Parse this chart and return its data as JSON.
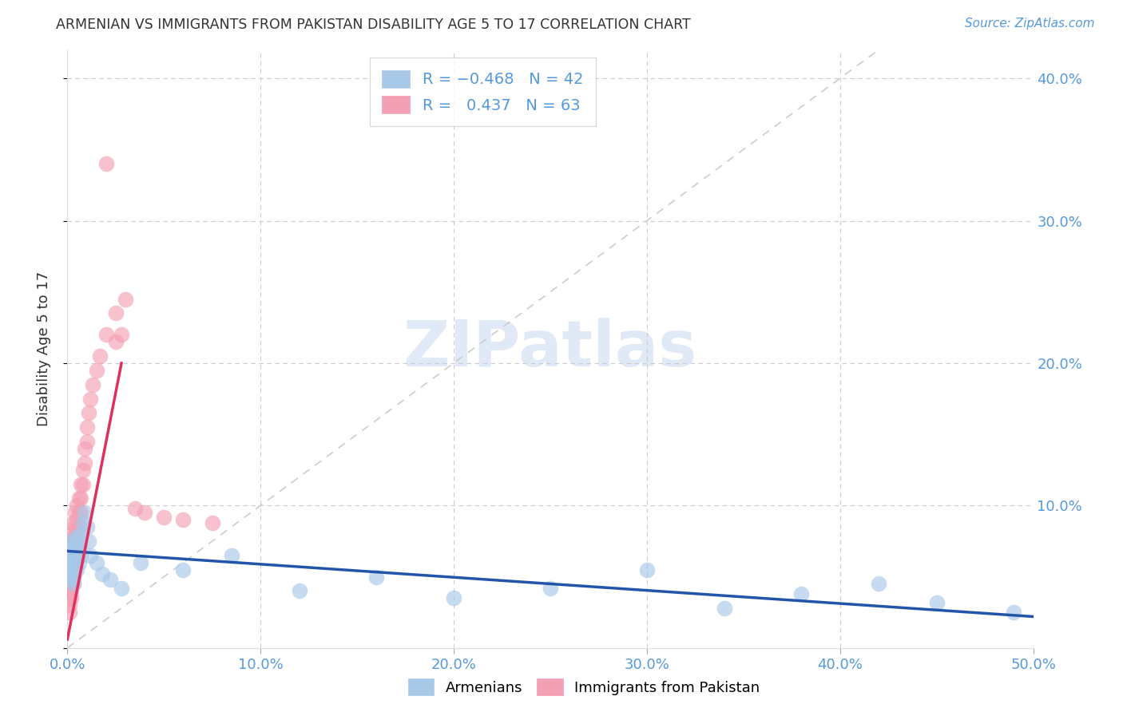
{
  "title": "ARMENIAN VS IMMIGRANTS FROM PAKISTAN DISABILITY AGE 5 TO 17 CORRELATION CHART",
  "source": "Source: ZipAtlas.com",
  "ylabel": "Disability Age 5 to 17",
  "xlim": [
    0.0,
    0.5
  ],
  "ylim": [
    0.0,
    0.42
  ],
  "xtick_vals": [
    0.0,
    0.1,
    0.2,
    0.3,
    0.4,
    0.5
  ],
  "ytick_vals": [
    0.0,
    0.1,
    0.2,
    0.3,
    0.4
  ],
  "xtick_labels": [
    "0.0%",
    "10.0%",
    "20.0%",
    "30.0%",
    "40.0%",
    "50.0%"
  ],
  "ytick_labels": [
    "",
    "10.0%",
    "20.0%",
    "30.0%",
    "40.0%"
  ],
  "armenian_color": "#a8c8e8",
  "pakistan_color": "#f4a0b4",
  "armenian_line_color": "#2255aa",
  "pakistan_line_color": "#e03060",
  "diagonal_color": "#cccccc",
  "background_color": "#ffffff",
  "grid_color": "#cccccc",
  "title_color": "#333333",
  "axis_color": "#5599dd",
  "source_color": "#5599dd",
  "watermark_color": "#c8d8f0",
  "armenian_x": [
    0.001,
    0.001,
    0.001,
    0.001,
    0.002,
    0.002,
    0.002,
    0.002,
    0.002,
    0.002,
    0.002,
    0.003,
    0.003,
    0.003,
    0.003,
    0.003,
    0.003,
    0.003,
    0.004,
    0.004,
    0.004,
    0.004,
    0.005,
    0.005,
    0.005,
    0.005,
    0.006,
    0.006,
    0.007,
    0.007,
    0.008,
    0.009,
    0.01,
    0.011,
    0.012,
    0.015,
    0.018,
    0.022,
    0.028,
    0.038,
    0.06,
    0.085,
    0.12,
    0.16,
    0.2,
    0.25,
    0.3,
    0.34,
    0.38,
    0.42,
    0.45,
    0.49
  ],
  "armenian_y": [
    0.065,
    0.06,
    0.058,
    0.055,
    0.068,
    0.075,
    0.058,
    0.052,
    0.048,
    0.065,
    0.07,
    0.072,
    0.065,
    0.06,
    0.055,
    0.05,
    0.068,
    0.045,
    0.075,
    0.065,
    0.06,
    0.058,
    0.078,
    0.068,
    0.062,
    0.055,
    0.072,
    0.06,
    0.08,
    0.065,
    0.088,
    0.095,
    0.085,
    0.075,
    0.065,
    0.06,
    0.052,
    0.048,
    0.042,
    0.06,
    0.055,
    0.065,
    0.04,
    0.05,
    0.035,
    0.042,
    0.055,
    0.028,
    0.038,
    0.045,
    0.032,
    0.025
  ],
  "pakistan_x": [
    0.001,
    0.001,
    0.001,
    0.001,
    0.001,
    0.001,
    0.001,
    0.001,
    0.001,
    0.001,
    0.002,
    0.002,
    0.002,
    0.002,
    0.002,
    0.002,
    0.002,
    0.002,
    0.002,
    0.002,
    0.002,
    0.003,
    0.003,
    0.003,
    0.003,
    0.003,
    0.003,
    0.004,
    0.004,
    0.004,
    0.004,
    0.005,
    0.005,
    0.005,
    0.005,
    0.006,
    0.006,
    0.006,
    0.007,
    0.007,
    0.007,
    0.008,
    0.008,
    0.009,
    0.009,
    0.01,
    0.01,
    0.011,
    0.012,
    0.013,
    0.015,
    0.017,
    0.02,
    0.025,
    0.03,
    0.035,
    0.04,
    0.05,
    0.06,
    0.075,
    0.02,
    0.025,
    0.028
  ],
  "pakistan_y": [
    0.06,
    0.055,
    0.05,
    0.045,
    0.04,
    0.035,
    0.03,
    0.025,
    0.068,
    0.062,
    0.072,
    0.065,
    0.06,
    0.055,
    0.05,
    0.045,
    0.04,
    0.035,
    0.075,
    0.08,
    0.068,
    0.088,
    0.078,
    0.068,
    0.058,
    0.05,
    0.045,
    0.095,
    0.085,
    0.075,
    0.065,
    0.1,
    0.09,
    0.08,
    0.07,
    0.105,
    0.095,
    0.085,
    0.115,
    0.105,
    0.095,
    0.125,
    0.115,
    0.14,
    0.13,
    0.155,
    0.145,
    0.165,
    0.175,
    0.185,
    0.195,
    0.205,
    0.22,
    0.235,
    0.245,
    0.098,
    0.095,
    0.092,
    0.09,
    0.088,
    0.34,
    0.215,
    0.22
  ],
  "arm_line_x0": 0.0,
  "arm_line_x1": 0.5,
  "arm_line_y0": 0.068,
  "arm_line_y1": 0.022,
  "pak_line_x0": 0.0,
  "pak_line_x1": 0.028,
  "pak_line_y0": 0.006,
  "pak_line_y1": 0.2
}
